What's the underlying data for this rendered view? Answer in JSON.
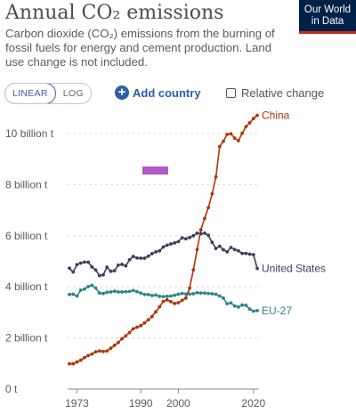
{
  "header": {
    "title": "Annual CO₂ emissions",
    "subtitle": "Carbon dioxide (CO₂) emissions from the burning of fossil fuels for energy and cement production. Land use change is not included.",
    "logo_line1": "Our World",
    "logo_line2": "in Data"
  },
  "controls": {
    "linear_label": "LINEAR",
    "log_label": "LOG",
    "add_country_label": "Add country",
    "relative_change_label": "Relative change"
  },
  "colors": {
    "china": "#b13507",
    "united_states": "#39415b",
    "eu27": "#2d8587",
    "marker": "#b159c8"
  },
  "chart_data": {
    "type": "line",
    "title": "Annual CO₂ emissions",
    "xlabel": "",
    "ylabel": "",
    "xlim": [
      1973,
      2021
    ],
    "ylim": [
      0,
      11000000000
    ],
    "grid": "horizontal dotted",
    "y_ticks": [
      {
        "value": 0,
        "label": "0 t"
      },
      {
        "value": 2000000000,
        "label": "2 billion t"
      },
      {
        "value": 4000000000,
        "label": "4 billion t"
      },
      {
        "value": 6000000000,
        "label": "6 billion t"
      },
      {
        "value": 8000000000,
        "label": "8 billion t"
      },
      {
        "value": 10000000000,
        "label": "10 billion t"
      }
    ],
    "x_ticks": [
      {
        "value": 1973,
        "label": "1973"
      },
      {
        "value": 1990,
        "label": "1990"
      },
      {
        "value": 2000,
        "label": "2000"
      },
      {
        "value": 2020,
        "label": "2020"
      }
    ],
    "x": [
      1971,
      1972,
      1973,
      1974,
      1975,
      1976,
      1977,
      1978,
      1979,
      1980,
      1981,
      1982,
      1983,
      1984,
      1985,
      1986,
      1987,
      1988,
      1989,
      1990,
      1991,
      1992,
      1993,
      1994,
      1995,
      1996,
      1997,
      1998,
      1999,
      2000,
      2001,
      2002,
      2003,
      2004,
      2005,
      2006,
      2007,
      2008,
      2009,
      2010,
      2011,
      2012,
      2013,
      2014,
      2015,
      2016,
      2017,
      2018,
      2019,
      2020,
      2021
    ],
    "series": [
      {
        "name": "China",
        "values": [
          0.99,
          0.99,
          1.06,
          1.13,
          1.23,
          1.31,
          1.37,
          1.46,
          1.49,
          1.47,
          1.49,
          1.6,
          1.71,
          1.82,
          1.97,
          2.08,
          2.21,
          2.36,
          2.42,
          2.48,
          2.59,
          2.71,
          2.84,
          3.02,
          3.22,
          3.43,
          3.49,
          3.42,
          3.35,
          3.38,
          3.47,
          3.56,
          3.95,
          4.67,
          5.46,
          6.23,
          6.68,
          7.1,
          7.64,
          8.3,
          9.49,
          9.7,
          9.97,
          9.99,
          9.82,
          9.72,
          10.01,
          10.27,
          10.42,
          10.59,
          10.71
        ]
      },
      {
        "name": "United States",
        "values": [
          4.73,
          4.58,
          4.87,
          4.93,
          4.97,
          4.97,
          4.78,
          4.66,
          4.44,
          4.47,
          4.77,
          4.61,
          4.63,
          4.85,
          4.88,
          4.82,
          5.06,
          5.19,
          5.13,
          5.12,
          5.12,
          5.2,
          5.3,
          5.37,
          5.41,
          5.56,
          5.63,
          5.68,
          5.72,
          5.77,
          5.92,
          5.88,
          5.93,
          6.0,
          6.1,
          6.08,
          6.1,
          6.02,
          5.74,
          5.5,
          5.59,
          5.45,
          5.37,
          5.54,
          5.46,
          5.41,
          5.31,
          5.31,
          5.28,
          5.26,
          4.72
        ]
      },
      {
        "name": "EU-27",
        "values": [
          3.7,
          3.71,
          3.64,
          3.87,
          3.91,
          4.01,
          4.06,
          3.95,
          3.76,
          3.74,
          3.79,
          3.8,
          3.83,
          3.8,
          3.8,
          3.81,
          3.82,
          3.86,
          3.81,
          3.76,
          3.7,
          3.7,
          3.66,
          3.68,
          3.63,
          3.62,
          3.63,
          3.64,
          3.67,
          3.71,
          3.74,
          3.72,
          3.72,
          3.73,
          3.77,
          3.76,
          3.76,
          3.74,
          3.73,
          3.71,
          3.64,
          3.56,
          3.34,
          3.37,
          3.25,
          3.21,
          3.29,
          3.28,
          3.13,
          3.05,
          3.07
        ]
      }
    ],
    "values_unit_multiplier": 1000000000,
    "direct_labels": [
      "China",
      "United States",
      "EU-27"
    ]
  }
}
